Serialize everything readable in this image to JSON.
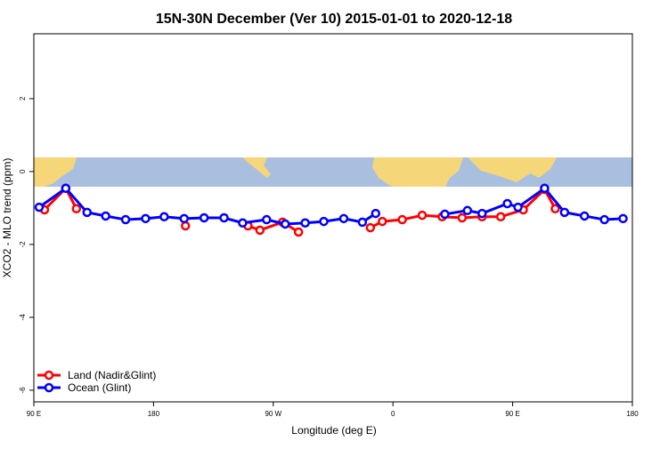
{
  "chart_data": {
    "type": "line",
    "title": "15N-30N December (Ver 10)   2015-01-01 to 2020-12-18",
    "xlabel": "Longitude (deg E)",
    "ylabel": "XCO2 - MLO trend (ppm)",
    "xlim": [
      90,
      540
    ],
    "ylim": [
      -6.32,
      3.78
    ],
    "xticks": [
      {
        "value": 90,
        "label": "90 E"
      },
      180,
      {
        "value": 270,
        "label": "90 W"
      },
      {
        "value": 360,
        "label": "0"
      },
      {
        "value": 450,
        "label": "90 E"
      },
      {
        "value": 540,
        "label": "180"
      }
    ],
    "yticks": [
      -6,
      -4,
      -2,
      0,
      2
    ],
    "legend": "bottom-left",
    "series": [
      {
        "name": "Land (Nadir&Glint)",
        "color": "#ff0000",
        "x": [
          98,
          114,
          122,
          null,
          204,
          null,
          251,
          260,
          277,
          289,
          null,
          343,
          352,
          367,
          382,
          397,
          412,
          427,
          441,
          458,
          474,
          482
        ],
        "values": [
          -1.05,
          -0.46,
          -1.02,
          null,
          -1.49,
          null,
          -1.49,
          -1.61,
          -1.39,
          -1.66,
          null,
          -1.54,
          -1.37,
          -1.32,
          -1.2,
          -1.24,
          -1.27,
          -1.24,
          -1.24,
          -1.05,
          -0.49,
          -1.02
        ]
      },
      {
        "name": "Ocean (Glint)",
        "color": "#0000ff",
        "x": [
          94,
          114,
          130,
          144,
          159,
          174,
          188,
          203,
          218,
          233,
          247,
          265,
          279,
          294,
          308,
          323,
          337,
          347,
          null,
          399,
          416,
          427,
          446,
          454,
          474,
          489,
          504,
          519,
          533
        ],
        "values": [
          -0.98,
          -0.46,
          -1.12,
          -1.22,
          -1.32,
          -1.29,
          -1.24,
          -1.29,
          -1.27,
          -1.27,
          -1.41,
          -1.32,
          -1.44,
          -1.41,
          -1.37,
          -1.29,
          -1.39,
          -1.15,
          null,
          -1.17,
          -1.07,
          -1.15,
          -0.88,
          -0.98,
          -0.46,
          -1.12,
          -1.22,
          -1.32,
          -1.29
        ]
      }
    ]
  }
}
